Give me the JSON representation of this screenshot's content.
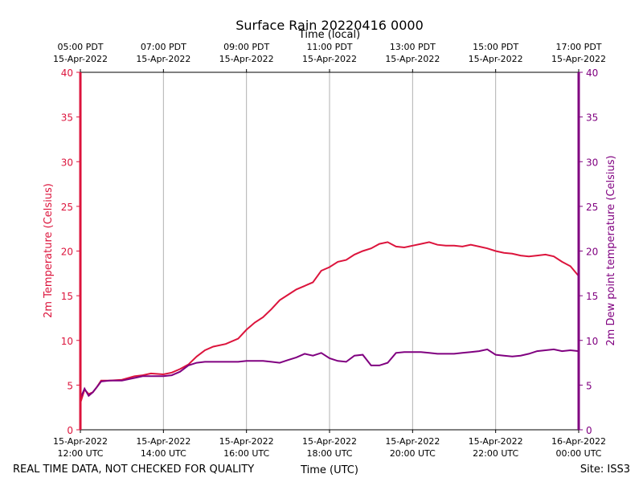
{
  "chart_data": {
    "type": "line",
    "title": "Surface Rain 20220416 0000",
    "xlabel_bottom": "Time (UTC)",
    "xlabel_top": "Time (local)",
    "ylabel_left": "2m Temperature (Celsius)",
    "ylabel_right": "2m Dew point temperature (Celsius)",
    "ylim": [
      0,
      40
    ],
    "yticks": [
      "0",
      "5",
      "10",
      "15",
      "20",
      "25",
      "30",
      "35",
      "40"
    ],
    "xlim": [
      12.0,
      24.0
    ],
    "grid": "vertical",
    "x_ticks_bottom": [
      {
        "x": 12,
        "date": "15-Apr-2022",
        "time": "12:00 UTC"
      },
      {
        "x": 14,
        "date": "15-Apr-2022",
        "time": "14:00 UTC"
      },
      {
        "x": 16,
        "date": "15-Apr-2022",
        "time": "16:00 UTC"
      },
      {
        "x": 18,
        "date": "15-Apr-2022",
        "time": "18:00 UTC"
      },
      {
        "x": 20,
        "date": "15-Apr-2022",
        "time": "20:00 UTC"
      },
      {
        "x": 22,
        "date": "15-Apr-2022",
        "time": "22:00 UTC"
      },
      {
        "x": 24,
        "date": "16-Apr-2022",
        "time": "00:00 UTC"
      }
    ],
    "x_ticks_top": [
      {
        "x": 12,
        "time": "05:00 PDT",
        "date": "15-Apr-2022"
      },
      {
        "x": 14,
        "time": "07:00 PDT",
        "date": "15-Apr-2022"
      },
      {
        "x": 16,
        "time": "09:00 PDT",
        "date": "15-Apr-2022"
      },
      {
        "x": 18,
        "time": "11:00 PDT",
        "date": "15-Apr-2022"
      },
      {
        "x": 20,
        "time": "13:00 PDT",
        "date": "15-Apr-2022"
      },
      {
        "x": 22,
        "time": "15:00 PDT",
        "date": "15-Apr-2022"
      },
      {
        "x": 24,
        "time": "17:00 PDT",
        "date": "15-Apr-2022"
      }
    ],
    "series": [
      {
        "axis": "left",
        "color": "#dc143c",
        "x": [
          12.0,
          12.1,
          12.2,
          12.3,
          12.4,
          12.5,
          12.7,
          13.0,
          13.3,
          13.5,
          13.7,
          14.0,
          14.2,
          14.4,
          14.6,
          14.8,
          15.0,
          15.2,
          15.5,
          15.8,
          16.0,
          16.2,
          16.4,
          16.6,
          16.8,
          17.0,
          17.2,
          17.4,
          17.6,
          17.8,
          18.0,
          18.2,
          18.4,
          18.6,
          18.8,
          19.0,
          19.2,
          19.4,
          19.6,
          19.8,
          20.0,
          20.2,
          20.4,
          20.6,
          20.8,
          21.0,
          21.2,
          21.4,
          21.6,
          21.8,
          22.0,
          22.2,
          22.4,
          22.6,
          22.8,
          23.0,
          23.2,
          23.4,
          23.6,
          23.8,
          24.0
        ],
        "y": [
          3.0,
          4.5,
          4.0,
          4.2,
          4.8,
          5.5,
          5.5,
          5.6,
          6.0,
          6.1,
          6.3,
          6.2,
          6.4,
          6.8,
          7.3,
          8.2,
          8.9,
          9.3,
          9.6,
          10.2,
          11.2,
          12.0,
          12.6,
          13.5,
          14.5,
          15.1,
          15.7,
          16.1,
          16.5,
          17.8,
          18.2,
          18.8,
          19.0,
          19.6,
          20.0,
          20.3,
          20.8,
          21.0,
          20.5,
          20.4,
          20.6,
          20.8,
          21.0,
          20.7,
          20.6,
          20.6,
          20.5,
          20.7,
          20.5,
          20.3,
          20.0,
          19.8,
          19.7,
          19.5,
          19.4,
          19.5,
          19.6,
          19.4,
          18.8,
          18.3,
          17.2
        ]
      },
      {
        "axis": "right",
        "color": "#800080",
        "x": [
          12.0,
          12.1,
          12.2,
          12.3,
          12.4,
          12.5,
          12.7,
          13.0,
          13.3,
          13.5,
          13.7,
          14.0,
          14.2,
          14.4,
          14.6,
          14.8,
          15.0,
          15.2,
          15.5,
          15.8,
          16.0,
          16.2,
          16.4,
          16.6,
          16.8,
          17.0,
          17.2,
          17.4,
          17.6,
          17.8,
          18.0,
          18.2,
          18.4,
          18.6,
          18.8,
          19.0,
          19.2,
          19.4,
          19.6,
          19.8,
          20.0,
          20.2,
          20.4,
          20.6,
          20.8,
          21.0,
          21.2,
          21.4,
          21.6,
          21.8,
          22.0,
          22.2,
          22.4,
          22.6,
          22.8,
          23.0,
          23.2,
          23.4,
          23.6,
          23.8,
          24.0
        ],
        "y": [
          3.5,
          4.6,
          3.8,
          4.2,
          4.8,
          5.4,
          5.5,
          5.5,
          5.8,
          6.0,
          6.0,
          6.0,
          6.1,
          6.5,
          7.2,
          7.5,
          7.6,
          7.6,
          7.6,
          7.6,
          7.7,
          7.7,
          7.7,
          7.6,
          7.5,
          7.8,
          8.1,
          8.5,
          8.3,
          8.6,
          8.0,
          7.7,
          7.6,
          8.3,
          8.4,
          7.2,
          7.2,
          7.5,
          8.6,
          8.7,
          8.7,
          8.7,
          8.6,
          8.5,
          8.5,
          8.5,
          8.6,
          8.7,
          8.8,
          9.0,
          8.4,
          8.3,
          8.2,
          8.3,
          8.5,
          8.8,
          8.9,
          9.0,
          8.8,
          8.9,
          8.8
        ]
      }
    ]
  },
  "footer": {
    "left_note": "REAL TIME DATA, NOT CHECKED FOR QUALITY",
    "site": "Site: ISS3"
  },
  "colors": {
    "temperature": "#dc143c",
    "dewpoint": "#800080",
    "grid": "#b0b0b0"
  }
}
